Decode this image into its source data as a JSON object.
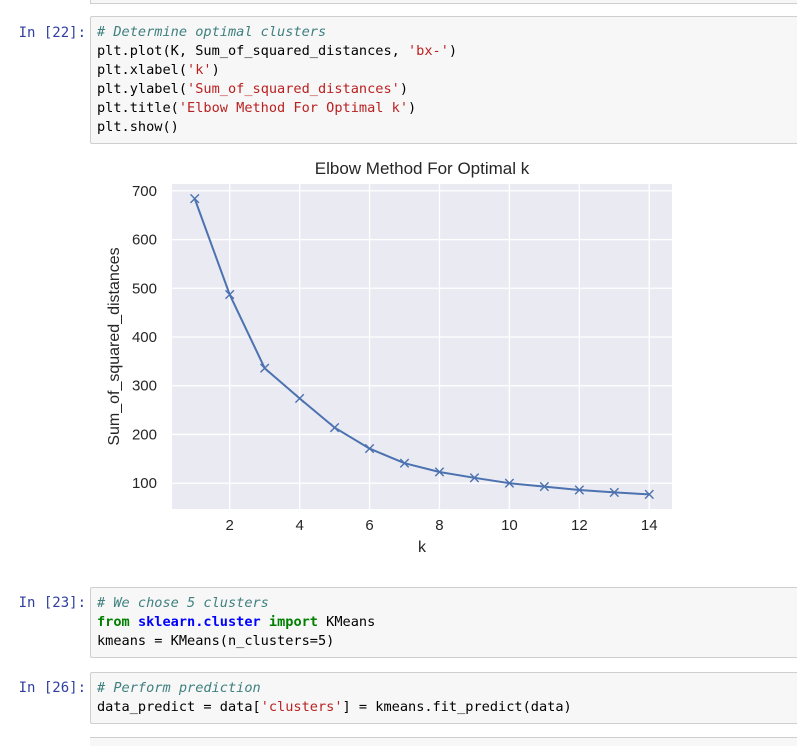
{
  "cells": [
    {
      "prompt": "In [22]:",
      "lines": [
        [
          {
            "t": "# Determine optimal clusters",
            "c": "cm"
          }
        ],
        [
          {
            "t": "plt.plot(K, Sum_of_squared_distances, "
          },
          {
            "t": "'bx-'",
            "c": "st"
          },
          {
            "t": ")"
          }
        ],
        [
          {
            "t": "plt.xlabel("
          },
          {
            "t": "'k'",
            "c": "st"
          },
          {
            "t": ")"
          }
        ],
        [
          {
            "t": "plt.ylabel("
          },
          {
            "t": "'Sum_of_squared_distances'",
            "c": "st"
          },
          {
            "t": ")"
          }
        ],
        [
          {
            "t": "plt.title("
          },
          {
            "t": "'Elbow Method For Optimal k'",
            "c": "st"
          },
          {
            "t": ")"
          }
        ],
        [
          {
            "t": "plt.show()"
          }
        ]
      ]
    },
    {
      "prompt": "In [23]:",
      "lines": [
        [
          {
            "t": "# We chose 5 clusters",
            "c": "cm"
          }
        ],
        [
          {
            "t": "from",
            "c": "kw"
          },
          {
            "t": " "
          },
          {
            "t": "sklearn.cluster",
            "c": "nn"
          },
          {
            "t": " "
          },
          {
            "t": "import",
            "c": "kw"
          },
          {
            "t": " KMeans"
          }
        ],
        [
          {
            "t": "kmeans = KMeans(n_clusters=5)"
          }
        ]
      ]
    },
    {
      "prompt": "In [26]:",
      "lines": [
        [
          {
            "t": "# Perform prediction",
            "c": "cm"
          }
        ],
        [
          {
            "t": "data_predict = data["
          },
          {
            "t": "'clusters'",
            "c": "st"
          },
          {
            "t": "] = kmeans.fit_predict(data)"
          }
        ]
      ]
    }
  ],
  "chart_data": {
    "type": "line",
    "title": "Elbow Method For Optimal k",
    "xlabel": "k",
    "ylabel": "Sum_of_squared_distances",
    "x": [
      1,
      2,
      3,
      4,
      5,
      6,
      7,
      8,
      9,
      10,
      11,
      12,
      13,
      14
    ],
    "values": [
      684,
      487,
      336,
      274,
      214,
      171,
      141,
      123,
      111,
      100,
      93,
      86,
      81,
      77
    ],
    "xticks": [
      2,
      4,
      6,
      8,
      10,
      12,
      14
    ],
    "yticks": [
      100,
      200,
      300,
      400,
      500,
      600,
      700
    ],
    "xlim": [
      0.35,
      14.65
    ],
    "ylim": [
      47,
      714
    ],
    "marker": "x",
    "grid": true,
    "line_color": "#4c72b0",
    "plot_background": "#eaeaf2"
  }
}
